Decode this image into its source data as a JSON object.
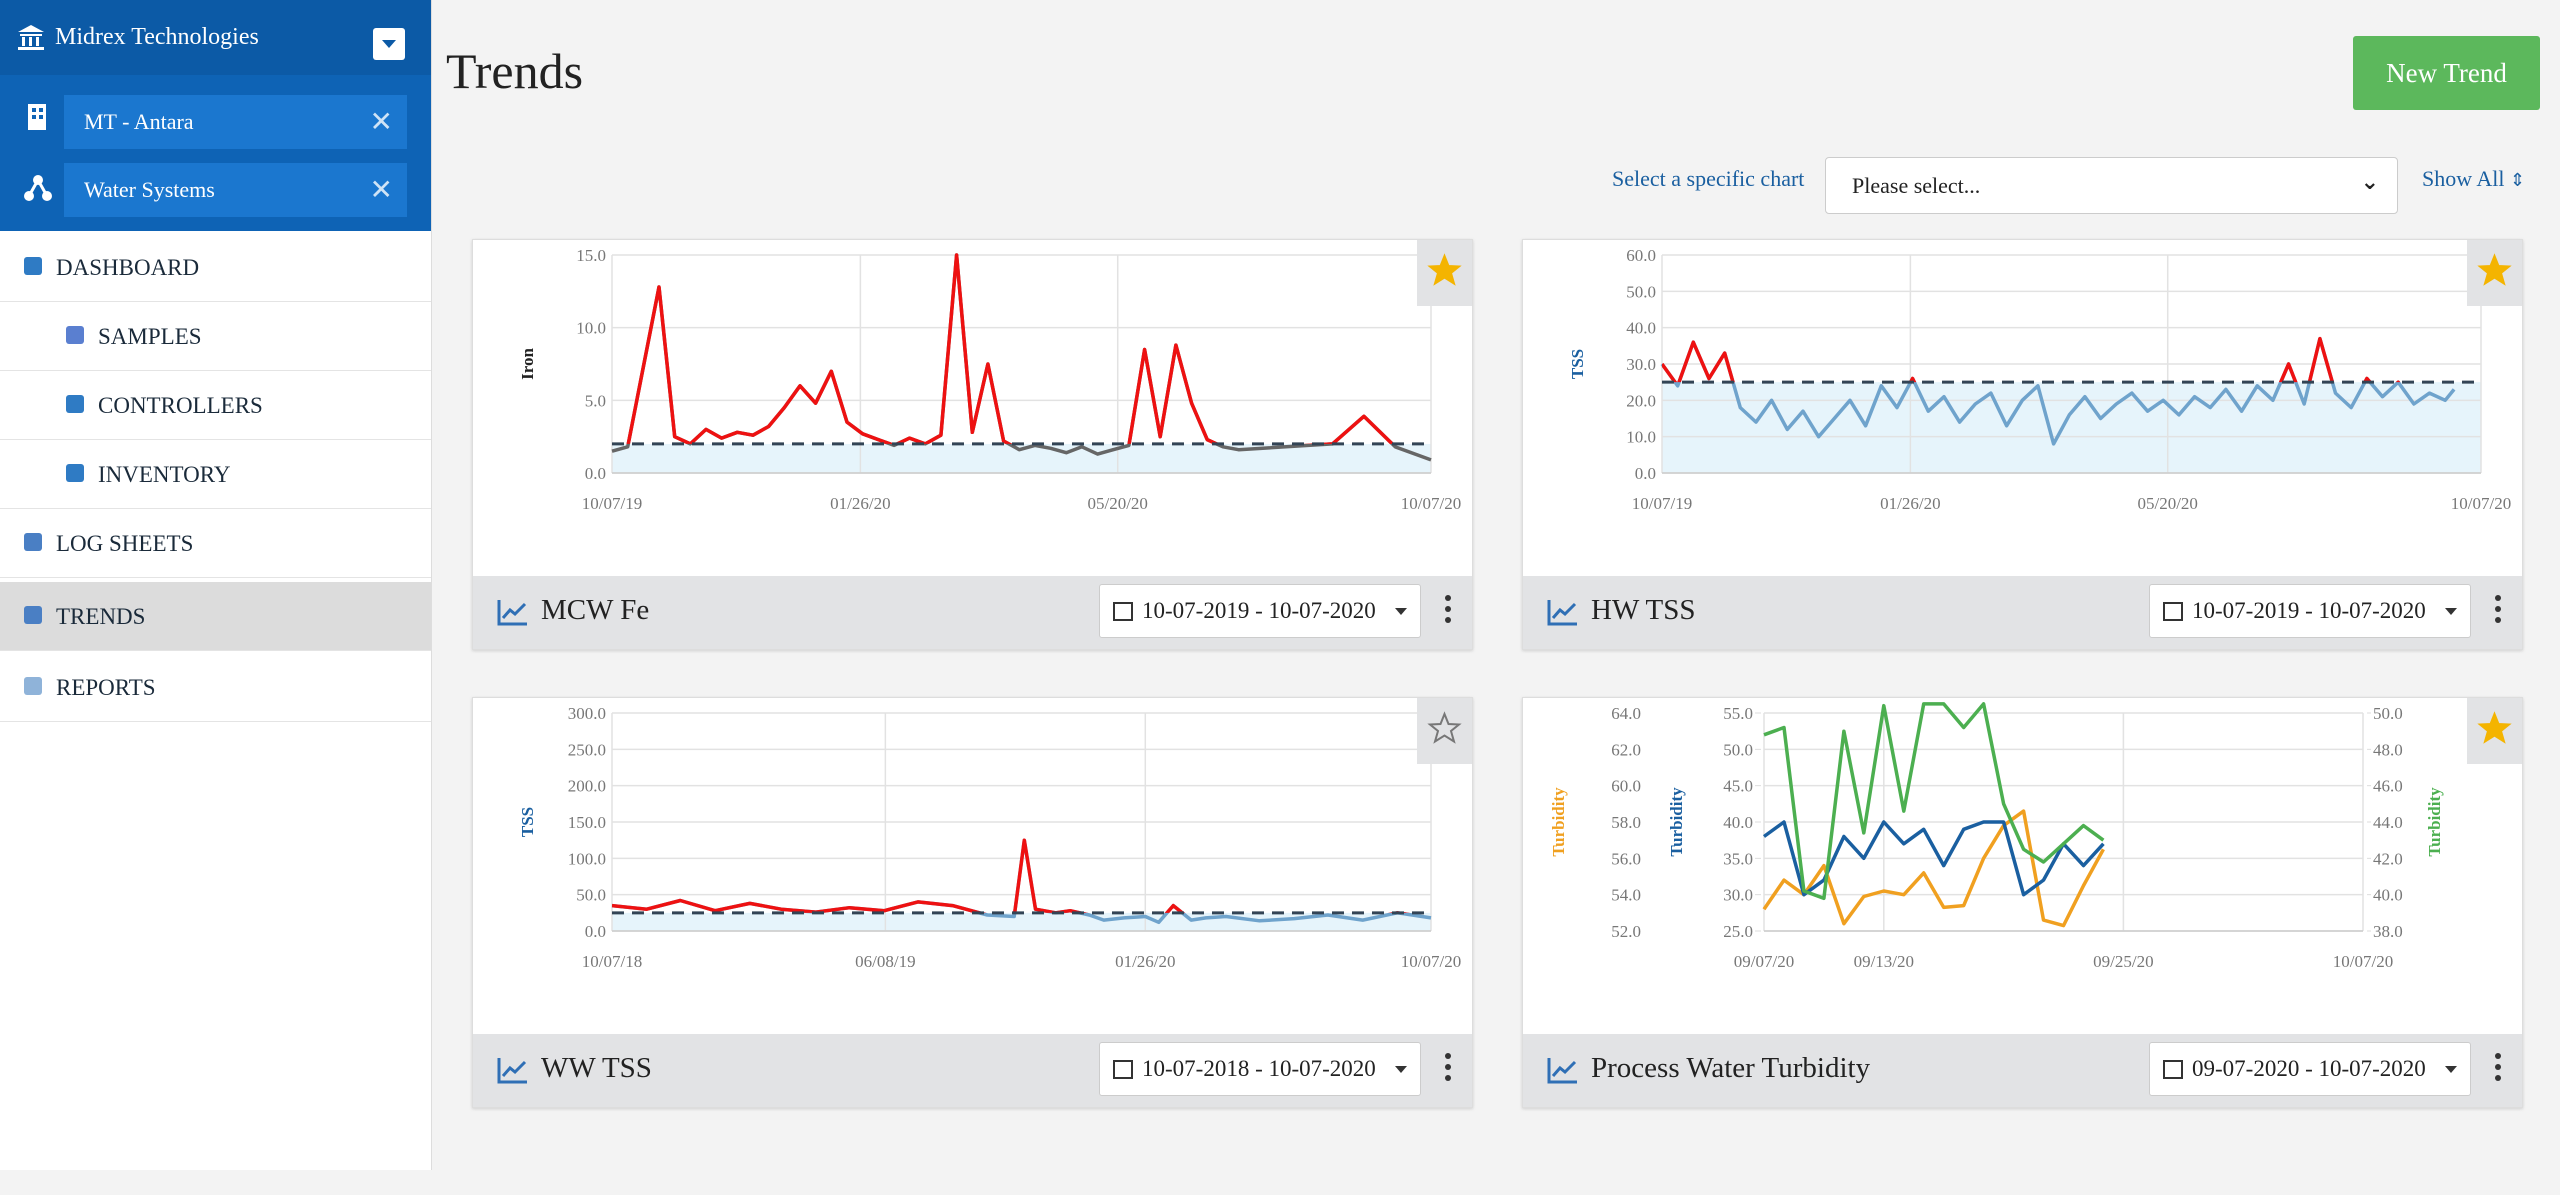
{
  "sidebar": {
    "org": "Midrex Technologies",
    "filters": [
      "MT - Antara",
      "Water Systems"
    ],
    "nav": [
      {
        "label": "DASHBOARD",
        "children": [
          "SAMPLES",
          "CONTROLLERS",
          "INVENTORY"
        ]
      },
      {
        "label": "LOG SHEETS"
      },
      {
        "label": "TRENDS",
        "active": true
      },
      {
        "label": "REPORTS"
      }
    ]
  },
  "header": {
    "title": "Trends",
    "button": "New Trend",
    "select_label": "Select a specific chart",
    "select_placeholder": "Please select...",
    "show_all": "Show All"
  },
  "chart_data": [
    {
      "type": "line",
      "title": "MCW Fe",
      "date_range": "10-07-2019 - 10-07-2020",
      "starred": true,
      "ylabel": "Iron",
      "ylabel_color": "#222222",
      "xlim": [
        "10/07/19",
        "10/07/20"
      ],
      "xticks": [
        "10/07/19",
        "01/26/20",
        "05/20/20",
        "10/07/20"
      ],
      "ylim": [
        0,
        15
      ],
      "yticks": [
        {
          "value": 0,
          "label": "0.0"
        },
        {
          "value": 5,
          "label": "5.0"
        },
        {
          "value": 10,
          "label": "10.0"
        },
        {
          "value": 15,
          "label": "15.0"
        }
      ],
      "threshold": 2.0,
      "above_color": "#ee1111",
      "band_color": "#e6f4fb",
      "grid": true,
      "x": [
        "10/07/19",
        "10/14/19",
        "10/28/19",
        "11/04/19",
        "11/11/19",
        "11/18/19",
        "11/25/19",
        "12/02/19",
        "12/09/19",
        "12/16/19",
        "12/23/19",
        "12/30/19",
        "01/06/20",
        "01/13/20",
        "01/20/20",
        "01/27/20",
        "02/03/20",
        "02/10/20",
        "02/17/20",
        "02/24/20",
        "03/02/20",
        "03/09/20",
        "03/16/20",
        "03/23/20",
        "03/30/20",
        "04/06/20",
        "04/13/20",
        "04/20/20",
        "04/27/20",
        "05/04/20",
        "05/11/20",
        "05/18/20",
        "05/25/20",
        "06/01/20",
        "06/08/20",
        "06/15/20",
        "06/22/20",
        "06/29/20",
        "07/06/20",
        "07/13/20",
        "08/24/20",
        "09/07/20",
        "09/21/20",
        "10/07/20"
      ],
      "series": [
        {
          "name": "MCW Fe",
          "color": "#666666",
          "values": [
            1.5,
            1.8,
            12.8,
            2.5,
            2.0,
            3.0,
            2.4,
            2.8,
            2.6,
            3.2,
            4.5,
            6.0,
            4.8,
            7.0,
            3.5,
            2.7,
            2.3,
            1.9,
            2.4,
            2.0,
            2.6,
            15.0,
            2.8,
            7.5,
            2.2,
            1.6,
            1.9,
            1.7,
            1.4,
            1.8,
            1.3,
            1.6,
            1.9,
            8.5,
            2.5,
            8.8,
            4.8,
            2.3,
            1.8,
            1.6,
            2.0,
            3.9,
            1.8,
            0.9
          ]
        }
      ]
    },
    {
      "type": "line",
      "title": "HW TSS",
      "date_range": "10-07-2019 - 10-07-2020",
      "starred": true,
      "ylabel": "TSS",
      "ylabel_color": "#1a5fa0",
      "xlim": [
        "10/07/19",
        "10/07/20"
      ],
      "xticks": [
        "10/07/19",
        "01/26/20",
        "05/20/20",
        "10/07/20"
      ],
      "ylim": [
        0,
        60
      ],
      "yticks": [
        {
          "value": 0,
          "label": "0.0"
        },
        {
          "value": 10,
          "label": "10.0"
        },
        {
          "value": 20,
          "label": "20.0"
        },
        {
          "value": 30,
          "label": "30.0"
        },
        {
          "value": 40,
          "label": "40.0"
        },
        {
          "value": 50,
          "label": "50.0"
        },
        {
          "value": 60,
          "label": "60.0"
        }
      ],
      "threshold": 25,
      "above_color": "#ee1111",
      "band_color": "#e6f4fb",
      "grid": true,
      "x": [
        "10/07/19",
        "10/14/19",
        "10/21/19",
        "10/28/19",
        "11/04/19",
        "11/11/19",
        "11/18/19",
        "11/25/19",
        "12/02/19",
        "12/09/19",
        "12/16/19",
        "12/23/19",
        "12/30/19",
        "01/06/20",
        "01/13/20",
        "01/20/20",
        "01/27/20",
        "02/03/20",
        "02/10/20",
        "02/17/20",
        "02/24/20",
        "03/02/20",
        "03/09/20",
        "03/16/20",
        "03/23/20",
        "03/30/20",
        "04/06/20",
        "04/13/20",
        "04/20/20",
        "04/27/20",
        "05/04/20",
        "05/11/20",
        "05/18/20",
        "05/25/20",
        "06/01/20",
        "06/08/20",
        "06/15/20",
        "06/22/20",
        "06/29/20",
        "07/06/20",
        "07/13/20",
        "07/20/20",
        "07/27/20",
        "08/03/20",
        "08/10/20",
        "08/17/20",
        "08/24/20",
        "08/31/20",
        "09/07/20",
        "09/14/20",
        "09/21/20",
        "09/25/20"
      ],
      "series": [
        {
          "name": "HW TSS",
          "color": "#6fa3cc",
          "values": [
            30,
            24,
            36,
            26,
            33,
            18,
            14,
            20,
            12,
            17,
            10,
            15,
            20,
            13,
            24,
            18,
            26,
            17,
            21,
            14,
            19,
            22,
            13,
            20,
            24,
            8,
            16,
            21,
            15,
            19,
            22,
            17,
            20,
            16,
            21,
            18,
            23,
            17,
            24,
            20,
            30,
            19,
            37,
            22,
            18,
            26,
            21,
            25,
            19,
            22,
            20,
            23
          ]
        }
      ]
    },
    {
      "type": "line",
      "title": "WW TSS",
      "date_range": "10-07-2018 - 10-07-2020",
      "starred": false,
      "ylabel": "TSS",
      "ylabel_color": "#1a5fa0",
      "xlim": [
        "10/07/18",
        "10/07/20"
      ],
      "xticks": [
        "10/07/18",
        "06/08/19",
        "01/26/20",
        "10/07/20"
      ],
      "ylim": [
        0,
        300
      ],
      "yticks": [
        {
          "value": 0,
          "label": "0.0"
        },
        {
          "value": 50,
          "label": "50.0"
        },
        {
          "value": 100,
          "label": "100.0"
        },
        {
          "value": 150,
          "label": "150.0"
        },
        {
          "value": 200,
          "label": "200.0"
        },
        {
          "value": 250,
          "label": "250.0"
        },
        {
          "value": 300,
          "label": "300.0"
        }
      ],
      "threshold": 25,
      "above_color": "#ee1111",
      "band_color": "#e6f4fb",
      "grid": true,
      "x": [
        "10/07/18",
        "11/07/18",
        "12/07/18",
        "01/07/19",
        "02/07/19",
        "03/07/19",
        "04/07/19",
        "05/07/19",
        "06/07/19",
        "07/07/19",
        "08/07/19",
        "09/07/19",
        "10/01/19",
        "10/10/19",
        "10/20/19",
        "11/07/19",
        "11/20/19",
        "12/07/19",
        "12/20/19",
        "01/07/20",
        "01/26/20",
        "02/07/20",
        "02/20/20",
        "03/07/20",
        "03/20/20",
        "04/07/20",
        "05/07/20",
        "06/07/20",
        "07/07/20",
        "08/07/20",
        "09/07/20",
        "10/07/20"
      ],
      "series": [
        {
          "name": "WW TSS",
          "color": "#6fa3cc",
          "values": [
            35,
            30,
            42,
            28,
            38,
            30,
            26,
            32,
            28,
            40,
            35,
            22,
            20,
            125,
            30,
            25,
            28,
            22,
            15,
            18,
            20,
            12,
            35,
            15,
            18,
            20,
            14,
            17,
            22,
            15,
            25,
            18
          ]
        }
      ]
    },
    {
      "type": "line",
      "title": "Process Water Turbidity",
      "date_range": "09-07-2020 - 10-07-2020",
      "starred": true,
      "ylabel": "Turbidity",
      "ylabel_color": "#f0a020",
      "y2label": "Turbidity",
      "y2label_color": "#1a5fa0",
      "y3label": "Turbidity",
      "y3label_color": "#4caf50",
      "xlim": [
        "09/07/20",
        "10/07/20"
      ],
      "xticks": [
        "09/07/20",
        "09/13/20",
        "09/25/20",
        "10/07/20"
      ],
      "ylim": [
        52,
        64
      ],
      "yticks": [
        {
          "value": 52,
          "label": "52.0"
        },
        {
          "value": 54,
          "label": "54.0"
        },
        {
          "value": 56,
          "label": "56.0"
        },
        {
          "value": 58,
          "label": "58.0"
        },
        {
          "value": 60,
          "label": "60.0"
        },
        {
          "value": 62,
          "label": "62.0"
        },
        {
          "value": 64,
          "label": "64.0"
        }
      ],
      "y2lim": [
        25,
        55
      ],
      "y2ticks": [
        {
          "value": 25,
          "label": "25.0"
        },
        {
          "value": 30,
          "label": "30.0"
        },
        {
          "value": 35,
          "label": "35.0"
        },
        {
          "value": 40,
          "label": "40.0"
        },
        {
          "value": 45,
          "label": "45.0"
        },
        {
          "value": 50,
          "label": "50.0"
        },
        {
          "value": 55,
          "label": "55.0"
        }
      ],
      "y3lim": [
        38,
        50
      ],
      "y3ticks": [
        {
          "value": 38,
          "label": "38.0"
        },
        {
          "value": 40,
          "label": "40.0"
        },
        {
          "value": 42,
          "label": "42.0"
        },
        {
          "value": 44,
          "label": "44.0"
        },
        {
          "value": 46,
          "label": "46.0"
        },
        {
          "value": 48,
          "label": "48.0"
        },
        {
          "value": 50,
          "label": "50.0"
        }
      ],
      "grid": true,
      "x": [
        "09/07/20",
        "09/08/20",
        "09/09/20",
        "09/10/20",
        "09/11/20",
        "09/12/20",
        "09/13/20",
        "09/14/20",
        "09/15/20",
        "09/16/20",
        "09/17/20",
        "09/18/20",
        "09/19/20",
        "09/20/20",
        "09/21/20",
        "09/22/20",
        "09/23/20",
        "09/24/20"
      ],
      "series": [
        {
          "name": "Turbidity",
          "axis": "y",
          "color": "#f0a020",
          "values": [
            53.2,
            54.8,
            54.0,
            55.6,
            52.4,
            53.9,
            54.2,
            54.0,
            55.2,
            53.3,
            53.4,
            56.0,
            57.8,
            58.6,
            52.6,
            52.3,
            54.5,
            56.5
          ]
        },
        {
          "name": "Turbidity",
          "axis": "y2",
          "color": "#1a5fa0",
          "values": [
            38,
            40,
            30,
            32,
            38,
            35,
            40,
            37,
            39,
            34,
            39,
            40,
            40,
            30,
            32,
            37,
            34,
            37
          ]
        },
        {
          "name": "Turbidity",
          "axis": "y3",
          "color": "#4caf50",
          "values": [
            48.8,
            49.2,
            40.2,
            39.8,
            49.0,
            43.4,
            50.4,
            44.6,
            50.5,
            50.5,
            49.2,
            50.5,
            45.0,
            42.5,
            41.8,
            42.8,
            43.8,
            43.0
          ]
        }
      ]
    }
  ]
}
